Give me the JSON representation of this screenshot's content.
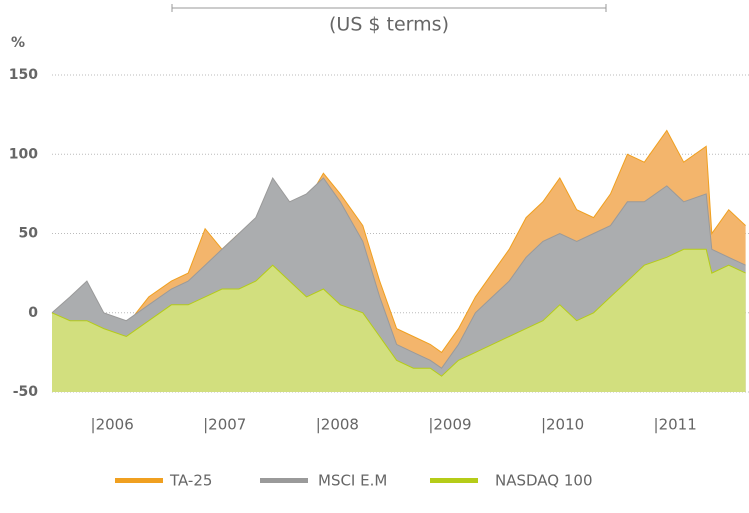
{
  "chart_data": {
    "type": "area",
    "title": "(US $ terms)",
    "y_label": "%",
    "x": [
      2005.64,
      2005.8,
      2005.95,
      2006.1,
      2006.3,
      2006.5,
      2006.7,
      2006.85,
      2007.0,
      2007.15,
      2007.3,
      2007.45,
      2007.6,
      2007.75,
      2007.9,
      2008.05,
      2008.2,
      2008.4,
      2008.55,
      2008.7,
      2008.85,
      2009.0,
      2009.1,
      2009.25,
      2009.4,
      2009.55,
      2009.7,
      2009.85,
      2010.0,
      2010.15,
      2010.3,
      2010.45,
      2010.6,
      2010.75,
      2010.9,
      2011.1,
      2011.25,
      2011.45,
      2011.5,
      2011.65,
      2011.8
    ],
    "series": [
      {
        "name": "TA-25",
        "color": "#f0a020",
        "fill": "#f3b56c",
        "values": [
          0,
          -5,
          0,
          -3,
          -8,
          10,
          20,
          25,
          53,
          40,
          50,
          58,
          75,
          65,
          70,
          88,
          75,
          55,
          20,
          -10,
          -15,
          -20,
          -25,
          -10,
          10,
          25,
          40,
          60,
          70,
          85,
          65,
          60,
          75,
          100,
          95,
          115,
          95,
          105,
          50,
          65,
          55
        ]
      },
      {
        "name": "MSCI E.M",
        "color": "#9a9a9a",
        "fill": "#abadaf",
        "values": [
          0,
          10,
          20,
          0,
          -5,
          5,
          15,
          20,
          30,
          40,
          50,
          60,
          85,
          70,
          75,
          85,
          70,
          45,
          10,
          -20,
          -25,
          -30,
          -35,
          -20,
          0,
          10,
          20,
          35,
          45,
          50,
          45,
          50,
          55,
          70,
          70,
          80,
          70,
          75,
          40,
          35,
          30
        ]
      },
      {
        "name": "NASDAQ 100",
        "color": "#b5cc18",
        "fill": "#d2df7e",
        "values": [
          0,
          -5,
          -5,
          -10,
          -15,
          -5,
          5,
          5,
          10,
          15,
          15,
          20,
          30,
          20,
          10,
          15,
          5,
          0,
          -15,
          -30,
          -35,
          -35,
          -40,
          -30,
          -25,
          -20,
          -15,
          -10,
          -5,
          5,
          -5,
          0,
          10,
          20,
          30,
          35,
          40,
          40,
          25,
          30,
          25
        ]
      }
    ],
    "xlim": [
      2005.64,
      2011.83
    ],
    "xticks": [
      {
        "value": 2006,
        "label": "|2006"
      },
      {
        "value": 2007,
        "label": "|2007"
      },
      {
        "value": 2008,
        "label": "|2008"
      },
      {
        "value": 2009,
        "label": "|2009"
      },
      {
        "value": 2010,
        "label": "|2010"
      },
      {
        "value": 2011,
        "label": "|2011"
      }
    ],
    "ylim": [
      -50,
      150
    ],
    "yticks": [
      -50,
      0,
      50,
      100,
      150
    ],
    "grid": true
  }
}
